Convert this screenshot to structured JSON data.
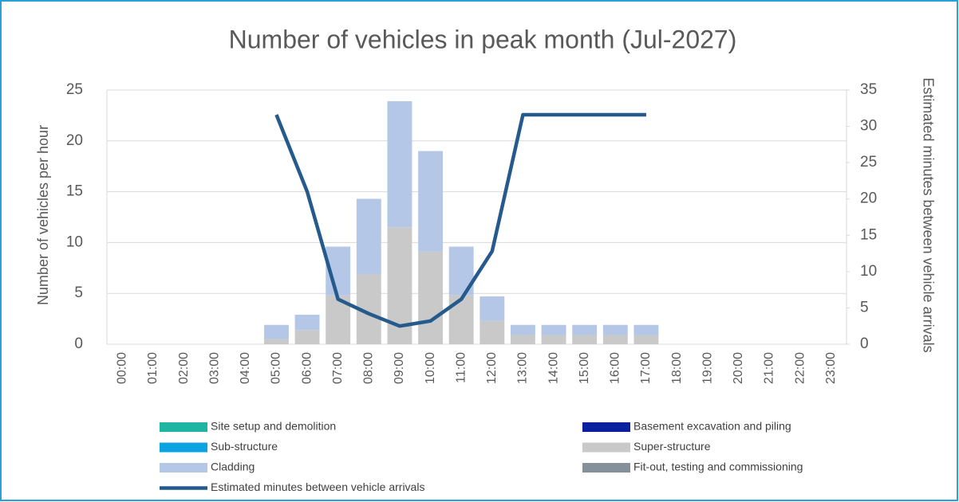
{
  "chart_data": {
    "type": "bar",
    "stacked": true,
    "title": "Number of vehicles in peak month (Jul-2027)",
    "y_label": "Number of vehicles per hour",
    "y2_label": "Estimated minutes between vehicle arrivals",
    "categories": [
      "00:00",
      "01:00",
      "02:00",
      "03:00",
      "04:00",
      "05:00",
      "06:00",
      "07:00",
      "08:00",
      "09:00",
      "10:00",
      "11:00",
      "12:00",
      "13:00",
      "14:00",
      "15:00",
      "16:00",
      "17:00",
      "18:00",
      "19:00",
      "20:00",
      "21:00",
      "22:00",
      "23:00"
    ],
    "series": [
      {
        "name": "Site setup and demolition",
        "color": "#1fb5a3",
        "type": "bar",
        "values": [
          0,
          0,
          0,
          0,
          0,
          0,
          0,
          0,
          0,
          0,
          0,
          0,
          0,
          0,
          0,
          0,
          0,
          0,
          0,
          0,
          0,
          0,
          0,
          0
        ]
      },
      {
        "name": "Basement excavation and piling",
        "color": "#0a1f9e",
        "type": "bar",
        "values": [
          0,
          0,
          0,
          0,
          0,
          0,
          0,
          0,
          0,
          0,
          0,
          0,
          0,
          0,
          0,
          0,
          0,
          0,
          0,
          0,
          0,
          0,
          0,
          0
        ]
      },
      {
        "name": "Sub-structure",
        "color": "#0aa2e0",
        "type": "bar",
        "values": [
          0,
          0,
          0,
          0,
          0,
          0,
          0,
          0,
          0,
          0,
          0,
          0,
          0,
          0,
          0,
          0,
          0,
          0,
          0,
          0,
          0,
          0,
          0,
          0
        ]
      },
      {
        "name": "Super-structure",
        "color": "#c9c9c9",
        "type": "bar",
        "values": [
          0,
          0,
          0,
          0,
          0,
          0.5,
          1.4,
          4.8,
          6.9,
          11.5,
          9.1,
          4.8,
          2.3,
          0.9,
          0.9,
          0.9,
          0.9,
          0.9,
          0,
          0,
          0,
          0,
          0,
          0
        ]
      },
      {
        "name": "Cladding",
        "color": "#b4c7e7",
        "type": "bar",
        "values": [
          0,
          0,
          0,
          0,
          0,
          1.4,
          1.5,
          4.8,
          7.4,
          12.4,
          9.9,
          4.8,
          2.4,
          1.0,
          1.0,
          1.0,
          1.0,
          1.0,
          0,
          0,
          0,
          0,
          0,
          0
        ]
      },
      {
        "name": "Fit-out, testing and commissioning",
        "color": "#84919c",
        "type": "bar",
        "values": [
          0,
          0,
          0,
          0,
          0,
          0,
          0,
          0,
          0,
          0,
          0,
          0,
          0,
          0,
          0,
          0,
          0,
          0,
          0,
          0,
          0,
          0,
          0,
          0
        ]
      },
      {
        "name": "Estimated minutes between vehicle arrivals",
        "color": "#255a8c",
        "type": "line",
        "axis": "y2",
        "values": [
          null,
          null,
          null,
          null,
          null,
          31.6,
          21,
          6.2,
          4.2,
          2.5,
          3.2,
          6.2,
          12.8,
          31.6,
          31.6,
          31.6,
          31.6,
          31.6,
          null,
          null,
          null,
          null,
          null,
          null
        ]
      }
    ],
    "ylim": [
      0,
      25
    ],
    "yticks": [
      0,
      5,
      10,
      15,
      20,
      25
    ],
    "y2lim": [
      0,
      35
    ],
    "y2ticks": [
      0,
      5,
      10,
      15,
      20,
      25,
      30,
      35
    ],
    "grid": true,
    "legend": "bottom"
  }
}
